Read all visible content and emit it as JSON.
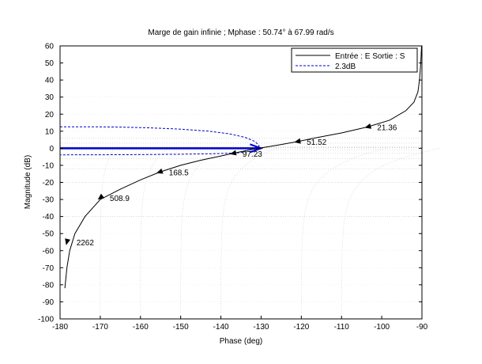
{
  "chart_data": {
    "type": "line",
    "title": "Marge de gain infinie ; Mphase : 50.74° à  67.99 rad/s",
    "xlabel": "Phase (deg)",
    "ylabel": "Magnitude (dB)",
    "xlim": [
      -180,
      -90
    ],
    "ylim": [
      -100,
      60
    ],
    "xticks": [
      -180,
      -170,
      -160,
      -150,
      -140,
      -130,
      -120,
      -110,
      -100,
      -90
    ],
    "yticks": [
      -100,
      -90,
      -80,
      -70,
      -60,
      -50,
      -40,
      -30,
      -20,
      -10,
      0,
      10,
      20,
      30,
      40,
      50,
      60
    ],
    "legend_position": "top-right",
    "grid": "Nichols chart iso-magnitude and iso-phase contours",
    "colors": {
      "main": "#000000",
      "closed_loop_contour": "#0000cc",
      "grid": "#c8c8c8"
    },
    "series": [
      {
        "name": "Entrée : E Sortie : S",
        "style": "solid",
        "x": [
          -178.8,
          -178.3,
          -177.6,
          -176.3,
          -173.8,
          -170.0,
          -165.0,
          -160.0,
          -155.3,
          -150.0,
          -145.0,
          -140.0,
          -137.0,
          -134.0,
          -132.0,
          -130.0,
          -128.0,
          -125.0,
          -121.0,
          -116.0,
          -110.0,
          -103.5,
          -98.0,
          -94.0,
          -92.0,
          -91.0,
          -90.6,
          -90.3,
          -90.1
        ],
        "y": [
          -82,
          -70,
          -60,
          -50,
          -40,
          -30,
          -24,
          -18.5,
          -14,
          -10,
          -7,
          -4.5,
          -3,
          -1.5,
          -0.5,
          0.2,
          1.0,
          2.2,
          3.9,
          6.3,
          9.0,
          12.5,
          16.5,
          22.0,
          27.0,
          33.0,
          40.0,
          50.0,
          60.0
        ]
      },
      {
        "name": "2.3dB",
        "style": "dashed",
        "x": [
          -180,
          -172,
          -165,
          -158,
          -150,
          -143,
          -138,
          -134,
          -131.5,
          -130.5,
          -130.8,
          -132.5,
          -136,
          -142,
          -150,
          -160,
          -170,
          -176,
          -180
        ],
        "y": [
          12.6,
          12.6,
          12.4,
          12.0,
          11.2,
          10.0,
          8.5,
          6.4,
          4.0,
          1.5,
          -0.6,
          -1.8,
          -2.7,
          -3.2,
          -3.5,
          -3.7,
          -3.8,
          -3.8,
          -3.9
        ]
      }
    ],
    "frequency_labels": [
      {
        "text": "2262",
        "x": -178.3,
        "y": -55
      },
      {
        "text": "508.9",
        "x": -170.0,
        "y": -29
      },
      {
        "text": "168.5",
        "x": -155.3,
        "y": -14
      },
      {
        "text": "97.23",
        "x": -137.0,
        "y": -3
      },
      {
        "text": "51.52",
        "x": -121.0,
        "y": 3.9
      },
      {
        "text": "21.36",
        "x": -103.5,
        "y": 12.5
      }
    ]
  }
}
